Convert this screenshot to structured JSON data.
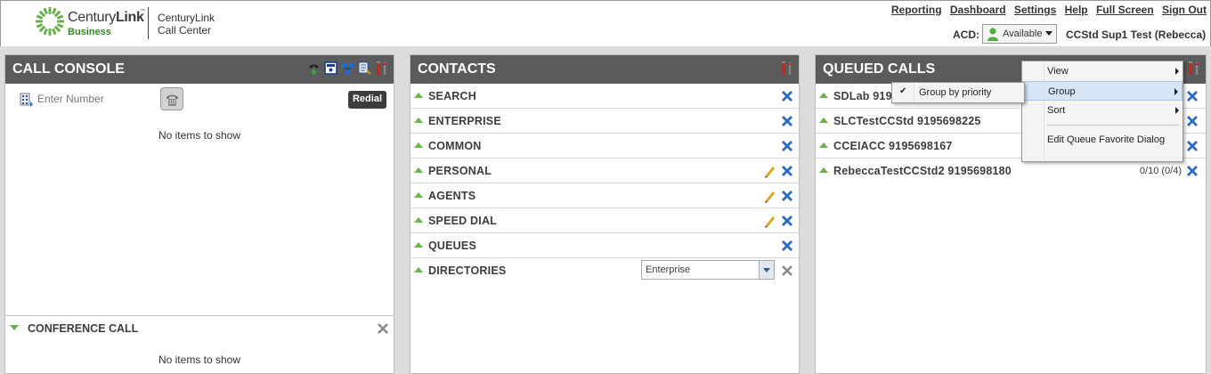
{
  "header": {
    "logo_name_regular": "Century",
    "logo_name_bold": "Link",
    "logo_tm": "™",
    "logo_business": "Business",
    "app_title_line1": "CenturyLink",
    "app_title_line2": "Call Center",
    "links": [
      "Reporting",
      "Dashboard",
      "Settings",
      "Help",
      "Full Screen",
      "Sign Out"
    ],
    "acd_label": "ACD:",
    "acd_status": "Available",
    "user_name": "CCStd Sup1 Test (Rebecca)"
  },
  "call_console": {
    "title": "CALL CONSOLE",
    "enter_number_placeholder": "Enter Number",
    "redial_label": "Redial",
    "empty_text": "No items to show",
    "conference": {
      "title": "CONFERENCE CALL",
      "empty_text": "No items to show"
    }
  },
  "contacts": {
    "title": "CONTACTS",
    "rows": [
      {
        "label": "SEARCH",
        "editable": false
      },
      {
        "label": "ENTERPRISE",
        "editable": false
      },
      {
        "label": "COMMON",
        "editable": false
      },
      {
        "label": "PERSONAL",
        "editable": true
      },
      {
        "label": "AGENTS",
        "editable": true
      },
      {
        "label": "SPEED DIAL",
        "editable": true
      },
      {
        "label": "QUEUES",
        "editable": false
      },
      {
        "label": "DIRECTORIES",
        "editable": false
      }
    ],
    "directory_select_value": "Enterprise"
  },
  "queued_calls": {
    "title": "QUEUED CALLS",
    "rows": [
      {
        "label": "SDLab 9195",
        "stats": ""
      },
      {
        "label": "SLCTestCCStd 9195698225",
        "stats": ""
      },
      {
        "label": "CCEIACC 9195698167",
        "stats": ""
      },
      {
        "label": "RebeccaTestCCStd2 9195698180",
        "stats": "0/10 (0/4)"
      }
    ]
  },
  "context_menu": {
    "items": [
      "View",
      "Group",
      "Sort",
      "Edit Queue Favorite Dialog"
    ],
    "submenu_items": [
      "Group by priority"
    ],
    "check_mark": "✔"
  },
  "colors": {
    "panel_header": "#5b5b5b",
    "accent_green": "#6ab04c",
    "delete_blue": "#2a6ebb",
    "menu_highlight": "#d6e6f6"
  }
}
